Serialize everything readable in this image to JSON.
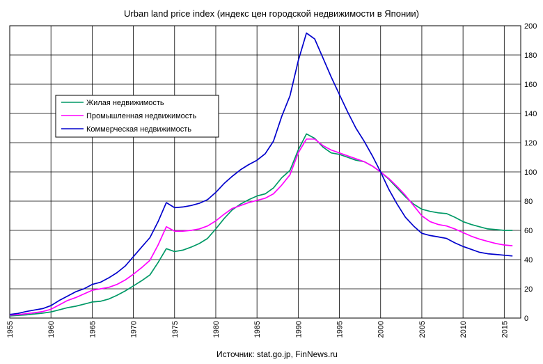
{
  "chart_data": {
    "type": "line",
    "title": "Urban land price index (индекс цен городской недвижимости  в Японии)",
    "source": "Источник: stat.go.jp, FinNews.ru",
    "xlim": [
      1955,
      2017
    ],
    "ylim": [
      0,
      200
    ],
    "x_ticks": [
      1955,
      1960,
      1965,
      1970,
      1975,
      1980,
      1985,
      1990,
      1995,
      2000,
      2005,
      2010,
      2015
    ],
    "x_tick_labels": [
      "1955",
      "1960",
      "1965",
      "1970",
      "1975",
      "1980",
      "1985",
      "1990",
      "1995",
      "2000",
      "2005",
      "2010",
      "2015"
    ],
    "y_ticks": [
      0,
      20,
      40,
      60,
      80,
      100,
      120,
      140,
      160,
      180,
      200
    ],
    "y_tick_labels": [
      "0",
      "20",
      "40",
      "60",
      "80",
      "100",
      "120",
      "140",
      "160",
      "180",
      "200"
    ],
    "grid": true,
    "legend_position": "left-middle",
    "x": [
      1955,
      1956,
      1957,
      1958,
      1959,
      1960,
      1961,
      1962,
      1963,
      1964,
      1965,
      1966,
      1967,
      1968,
      1969,
      1970,
      1971,
      1972,
      1973,
      1974,
      1975,
      1976,
      1977,
      1978,
      1979,
      1980,
      1981,
      1982,
      1983,
      1984,
      1985,
      1986,
      1987,
      1988,
      1989,
      1990,
      1991,
      1992,
      1993,
      1994,
      1995,
      1996,
      1997,
      1998,
      1999,
      2000,
      2001,
      2002,
      2003,
      2004,
      2005,
      2006,
      2007,
      2008,
      2009,
      2010,
      2011,
      2012,
      2013,
      2014,
      2015,
      2016
    ],
    "series": [
      {
        "name": "Жилая недвижимость",
        "color": "#009966",
        "values": [
          1.5,
          1.8,
          2.2,
          2.8,
          3.4,
          4.2,
          5.6,
          7.1,
          8.1,
          9.5,
          11,
          11.5,
          13,
          15.5,
          18.5,
          22,
          25.5,
          29.5,
          38,
          47.5,
          45.5,
          46.5,
          48.5,
          51,
          54.5,
          61,
          68,
          74,
          78,
          81,
          83.5,
          85,
          89,
          96,
          101,
          115,
          126,
          123,
          117,
          113,
          112,
          110,
          108,
          107,
          104,
          100,
          95,
          89,
          83,
          78,
          74.5,
          73,
          72,
          71.5,
          69,
          66,
          64,
          62.5,
          61,
          60.5,
          60,
          60
        ]
      },
      {
        "name": "Промышленная недвижимость",
        "color": "#FF00FF",
        "values": [
          2,
          2.4,
          3,
          3.6,
          4.5,
          6,
          9,
          12,
          14,
          16.5,
          19,
          20,
          21,
          23,
          26,
          30,
          34.5,
          39.5,
          50,
          62.5,
          59.5,
          59.5,
          60,
          61,
          63,
          66.5,
          71,
          75,
          77,
          79,
          80.5,
          82,
          85,
          91,
          98,
          113,
          122.5,
          122.5,
          118,
          115,
          113,
          111,
          109,
          107,
          104,
          100,
          95.5,
          90,
          84,
          77,
          70,
          66,
          64,
          63,
          61,
          58.5,
          56,
          54,
          52.5,
          51,
          50,
          49.5
        ]
      },
      {
        "name": "Коммерческая недвижимость",
        "color": "#0000CC",
        "values": [
          2.5,
          3.2,
          4.5,
          5.5,
          6.5,
          8.5,
          12,
          15,
          18,
          20,
          23,
          24.5,
          27.5,
          31,
          35.5,
          42,
          48.5,
          55,
          66,
          79,
          75.5,
          76,
          77,
          78.5,
          81,
          86,
          92,
          97,
          101.5,
          105,
          108,
          112.5,
          121,
          138,
          152,
          176,
          195,
          191,
          178,
          165,
          153,
          141,
          130,
          121,
          111,
          100,
          88,
          78,
          69,
          63,
          58,
          56.5,
          55.5,
          54.5,
          51.5,
          49,
          47,
          45,
          44,
          43.5,
          43,
          42.5
        ]
      }
    ]
  }
}
